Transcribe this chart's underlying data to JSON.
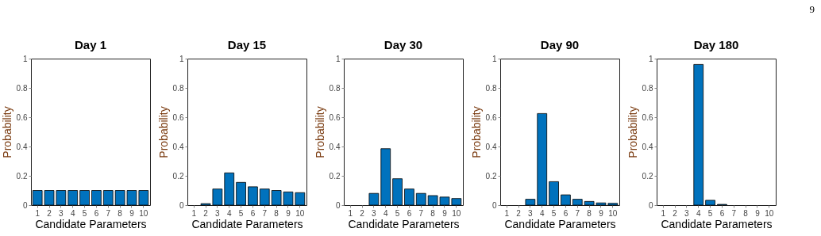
{
  "chart_data": [
    {
      "type": "bar",
      "title": "Day 1",
      "xlabel": "Candidate Parameters",
      "ylabel": "Probability",
      "categories": [
        "1",
        "2",
        "3",
        "4",
        "5",
        "6",
        "7",
        "8",
        "9",
        "10"
      ],
      "values": [
        0.1,
        0.1,
        0.1,
        0.1,
        0.1,
        0.1,
        0.1,
        0.1,
        0.1,
        0.1
      ],
      "color": "#0072bd",
      "ylim": [
        0,
        1
      ],
      "yticks": [
        0,
        0.2,
        0.4,
        0.6,
        0.8,
        1
      ]
    },
    {
      "type": "bar",
      "title": "Day 15",
      "xlabel": "Candidate Parameters",
      "ylabel": "Probability",
      "categories": [
        "1",
        "2",
        "3",
        "4",
        "5",
        "6",
        "7",
        "8",
        "9",
        "10"
      ],
      "values": [
        0,
        0.01,
        0.11,
        0.22,
        0.155,
        0.125,
        0.11,
        0.1,
        0.09,
        0.085
      ],
      "color": "#0072bd",
      "ylim": [
        0,
        1
      ],
      "yticks": [
        0,
        0.2,
        0.4,
        0.6,
        0.8,
        1
      ]
    },
    {
      "type": "bar",
      "title": "Day 30",
      "xlabel": "Candidate Parameters",
      "ylabel": "Probability",
      "categories": [
        "1",
        "2",
        "3",
        "4",
        "5",
        "6",
        "7",
        "8",
        "9",
        "10"
      ],
      "values": [
        0,
        0,
        0.08,
        0.385,
        0.18,
        0.11,
        0.08,
        0.065,
        0.055,
        0.045
      ],
      "color": "#0072bd",
      "ylim": [
        0,
        1
      ],
      "yticks": [
        0,
        0.2,
        0.4,
        0.6,
        0.8,
        1
      ]
    },
    {
      "type": "bar",
      "title": "Day 90",
      "xlabel": "Candidate Parameters",
      "ylabel": "Probability",
      "categories": [
        "1",
        "2",
        "3",
        "4",
        "5",
        "6",
        "7",
        "8",
        "9",
        "10"
      ],
      "values": [
        0,
        0,
        0.04,
        0.625,
        0.16,
        0.07,
        0.04,
        0.025,
        0.015,
        0.012
      ],
      "color": "#0072bd",
      "ylim": [
        0,
        1
      ],
      "yticks": [
        0,
        0.2,
        0.4,
        0.6,
        0.8,
        1
      ]
    },
    {
      "type": "bar",
      "title": "Day 180",
      "xlabel": "Candidate Parameters",
      "ylabel": "Probability",
      "categories": [
        "1",
        "2",
        "3",
        "4",
        "5",
        "6",
        "7",
        "8",
        "9",
        "10"
      ],
      "values": [
        0,
        0,
        0,
        0.96,
        0.033,
        0.005,
        0,
        0,
        0,
        0
      ],
      "color": "#0072bd",
      "ylim": [
        0,
        1
      ],
      "yticks": [
        0,
        0.2,
        0.4,
        0.6,
        0.8,
        1
      ],
      "annotations": [
        "9"
      ]
    }
  ]
}
